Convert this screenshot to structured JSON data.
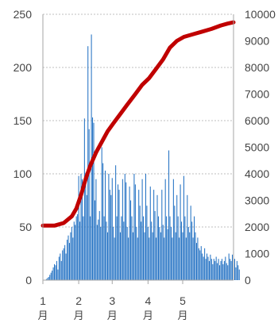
{
  "chart_data": {
    "type": "bar+line",
    "title": "",
    "xlabel": "",
    "ylabel": "",
    "x_ticks": [
      {
        "num": "1",
        "unit": "月",
        "day": 0
      },
      {
        "num": "2",
        "unit": "月",
        "day": 31
      },
      {
        "num": "3",
        "unit": "月",
        "day": 60
      },
      {
        "num": "4",
        "unit": "月",
        "day": 91
      },
      {
        "num": "5",
        "unit": "月",
        "day": 121
      }
    ],
    "x_range_days": [
      0,
      165
    ],
    "y_left": {
      "min": 0,
      "max": 250,
      "ticks": [
        0,
        50,
        100,
        150,
        200,
        250
      ]
    },
    "y_right": {
      "min": 0,
      "max": 10000,
      "ticks": [
        0,
        1000,
        2000,
        3000,
        4000,
        5000,
        6000,
        7000,
        8000,
        9000,
        10000
      ]
    },
    "grid": true,
    "series": [
      {
        "kind": "bar",
        "axis": "left",
        "color": "#1f6fc2",
        "first_day": 3,
        "values": [
          1,
          2,
          3,
          5,
          7,
          9,
          12,
          15,
          14,
          18,
          10,
          22,
          25,
          18,
          28,
          30,
          33,
          25,
          38,
          42,
          35,
          45,
          50,
          40,
          55,
          52,
          60,
          62,
          98,
          55,
          100,
          95,
          60,
          152,
          101,
          80,
          220,
          142,
          60,
          231,
          153,
          148,
          75,
          95,
          52,
          57,
          65,
          50,
          125,
          110,
          60,
          103,
          55,
          45,
          100,
          85,
          80,
          96,
          50,
          40,
          108,
          60,
          90,
          85,
          45,
          60,
          95,
          55,
          100,
          92,
          50,
          40,
          88,
          75,
          60,
          45,
          100,
          90,
          50,
          40,
          85,
          70,
          55,
          95,
          60,
          45,
          100,
          70,
          50,
          40,
          88,
          55,
          45,
          85,
          65,
          40,
          80,
          60,
          50,
          45,
          85,
          52,
          40,
          95,
          60,
          48,
          122,
          60,
          50,
          40,
          95,
          70,
          45,
          80,
          60,
          40,
          90,
          55,
          45,
          98,
          60,
          40,
          80,
          50,
          45,
          70,
          55,
          40,
          60,
          45,
          35,
          40,
          30,
          28,
          32,
          25,
          22,
          30,
          20,
          25,
          22,
          18,
          24,
          20,
          15,
          20,
          18,
          22,
          16,
          20,
          14,
          18,
          20,
          15,
          18,
          22,
          16,
          14,
          25,
          20,
          18,
          24,
          15,
          20,
          12,
          18,
          14,
          10
        ]
      },
      {
        "kind": "line",
        "axis": "right",
        "color": "#c00000",
        "points": [
          [
            0,
            2050
          ],
          [
            10,
            2050
          ],
          [
            18,
            2150
          ],
          [
            25,
            2400
          ],
          [
            29,
            2700
          ],
          [
            33,
            3200
          ],
          [
            37,
            3800
          ],
          [
            41,
            4300
          ],
          [
            46,
            4800
          ],
          [
            51,
            5200
          ],
          [
            56,
            5600
          ],
          [
            61,
            5900
          ],
          [
            67,
            6250
          ],
          [
            73,
            6600
          ],
          [
            80,
            7000
          ],
          [
            86,
            7350
          ],
          [
            92,
            7600
          ],
          [
            98,
            7950
          ],
          [
            104,
            8300
          ],
          [
            110,
            8750
          ],
          [
            116,
            9000
          ],
          [
            122,
            9150
          ],
          [
            130,
            9250
          ],
          [
            138,
            9350
          ],
          [
            146,
            9450
          ],
          [
            154,
            9580
          ],
          [
            160,
            9650
          ],
          [
            165,
            9700
          ]
        ]
      }
    ]
  }
}
